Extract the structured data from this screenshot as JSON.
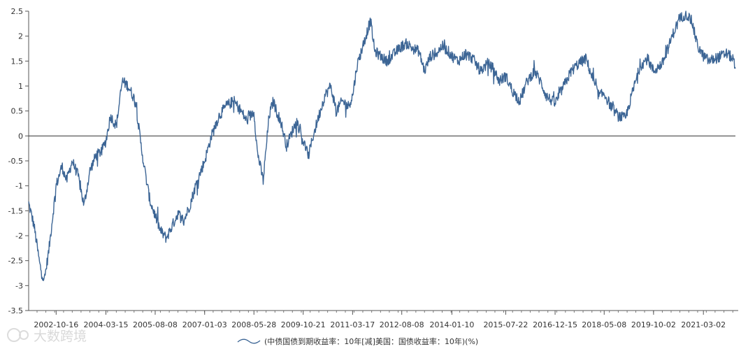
{
  "chart_data": {
    "type": "line",
    "title": "",
    "xlabel": "",
    "ylabel": "",
    "ylim": [
      -3.5,
      2.5
    ],
    "yticks": [
      "2.5",
      "2",
      "1.5",
      "1",
      "0.5",
      "0",
      "-0.5",
      "-1",
      "-1.5",
      "-2",
      "-2.5",
      "-3",
      "-3.5"
    ],
    "xticks": [
      "2002-10-16",
      "2004-03-15",
      "2005-08-08",
      "2007-01-03",
      "2008-05-28",
      "2009-10-21",
      "2011-03-17",
      "2012-08-08",
      "2014-01-10",
      "2015-07-22",
      "2016-12-15",
      "2018-05-08",
      "2019-10-02",
      "2021-03-02"
    ],
    "grid": false,
    "zero_line": true,
    "legend_position": "bottom-center",
    "series": [
      {
        "name": "(中债国债到期收益率：10年[减]美国：国债收益率：10年)(%)",
        "color": "#3c6595",
        "x": [
          "2002-01-04",
          "2002-03-01",
          "2002-05-01",
          "2002-06-15",
          "2002-08-01",
          "2002-10-16",
          "2002-12-15",
          "2003-02-01",
          "2003-04-01",
          "2003-06-01",
          "2003-08-01",
          "2003-10-01",
          "2003-12-01",
          "2004-02-01",
          "2004-03-15",
          "2004-05-01",
          "2004-07-01",
          "2004-09-01",
          "2004-11-01",
          "2005-01-15",
          "2005-03-15",
          "2005-05-01",
          "2005-06-15",
          "2005-08-08",
          "2005-10-01",
          "2005-12-01",
          "2006-02-01",
          "2006-04-01",
          "2006-06-01",
          "2006-08-01",
          "2006-10-01",
          "2007-01-03",
          "2007-03-15",
          "2007-06-01",
          "2007-08-15",
          "2007-11-01",
          "2008-01-15",
          "2008-03-15",
          "2008-05-28",
          "2008-07-01",
          "2008-09-01",
          "2008-11-01",
          "2008-12-15",
          "2009-01-15",
          "2009-03-01",
          "2009-05-01",
          "2009-07-01",
          "2009-08-15",
          "2009-10-21",
          "2009-12-15",
          "2010-02-01",
          "2010-04-01",
          "2010-06-01",
          "2010-08-01",
          "2010-10-01",
          "2010-12-01",
          "2011-02-01",
          "2011-03-17",
          "2011-05-01",
          "2011-07-01",
          "2011-09-01",
          "2011-09-20",
          "2011-11-01",
          "2012-01-01",
          "2012-03-01",
          "2012-05-01",
          "2012-06-15",
          "2012-08-08",
          "2012-10-01",
          "2012-12-01",
          "2013-02-01",
          "2013-04-01",
          "2013-06-01",
          "2013-08-01",
          "2013-10-01",
          "2013-12-01",
          "2014-01-10",
          "2014-03-15",
          "2014-06-01",
          "2014-08-15",
          "2014-11-01",
          "2015-01-15",
          "2015-03-15",
          "2015-05-15",
          "2015-07-22",
          "2015-10-01",
          "2015-12-15",
          "2016-03-01",
          "2016-05-15",
          "2016-07-15",
          "2016-09-15",
          "2016-12-15",
          "2017-03-15",
          "2017-06-01",
          "2017-08-15",
          "2017-11-01",
          "2018-01-15",
          "2018-03-15",
          "2018-05-08",
          "2018-07-15",
          "2018-10-01",
          "2018-12-15",
          "2019-03-01",
          "2019-05-15",
          "2019-08-01",
          "2019-10-02",
          "2020-01-01",
          "2020-03-09",
          "2020-05-01",
          "2020-07-01",
          "2020-09-01",
          "2020-11-01",
          "2021-01-01",
          "2021-03-02",
          "2021-05-01",
          "2021-07-01",
          "2021-09-01",
          "2021-11-01",
          "2022-01-01",
          "2022-01-28"
        ],
        "values": [
          -1.35,
          -1.8,
          -2.6,
          -2.9,
          -2.3,
          -1.0,
          -0.6,
          -0.9,
          -0.5,
          -0.8,
          -1.4,
          -0.7,
          -0.4,
          -0.3,
          -0.1,
          0.4,
          0.2,
          1.1,
          1.0,
          0.7,
          -0.2,
          -0.8,
          -1.3,
          -1.6,
          -1.9,
          -2.05,
          -1.8,
          -1.55,
          -1.7,
          -1.4,
          -1.0,
          -0.5,
          0.0,
          0.4,
          0.6,
          0.7,
          0.5,
          0.3,
          0.5,
          -0.3,
          -0.9,
          0.4,
          0.7,
          0.5,
          0.3,
          -0.2,
          0.1,
          0.3,
          -0.1,
          -0.4,
          0.0,
          0.4,
          0.8,
          1.0,
          0.5,
          0.7,
          0.6,
          0.8,
          1.4,
          1.8,
          2.2,
          2.3,
          1.7,
          1.6,
          1.5,
          1.6,
          1.7,
          1.8,
          1.85,
          1.75,
          1.7,
          1.3,
          1.6,
          1.65,
          1.8,
          1.7,
          1.6,
          1.5,
          1.65,
          1.55,
          1.3,
          1.45,
          1.35,
          1.1,
          1.2,
          0.9,
          0.7,
          1.1,
          1.3,
          1.1,
          0.8,
          0.65,
          1.0,
          1.3,
          1.45,
          1.55,
          1.1,
          0.8,
          0.85,
          0.6,
          0.4,
          0.35,
          0.9,
          1.4,
          1.55,
          1.3,
          1.45,
          1.8,
          2.1,
          2.35,
          2.45,
          2.3,
          1.8,
          1.6,
          1.5,
          1.55,
          1.6,
          1.65,
          1.55,
          1.35
        ]
      }
    ]
  },
  "legend": {
    "label": "(中债国债到期收益率：10年[减]美国：国债收益率：10年)(%)"
  },
  "watermark": {
    "text": "大数跨境"
  }
}
